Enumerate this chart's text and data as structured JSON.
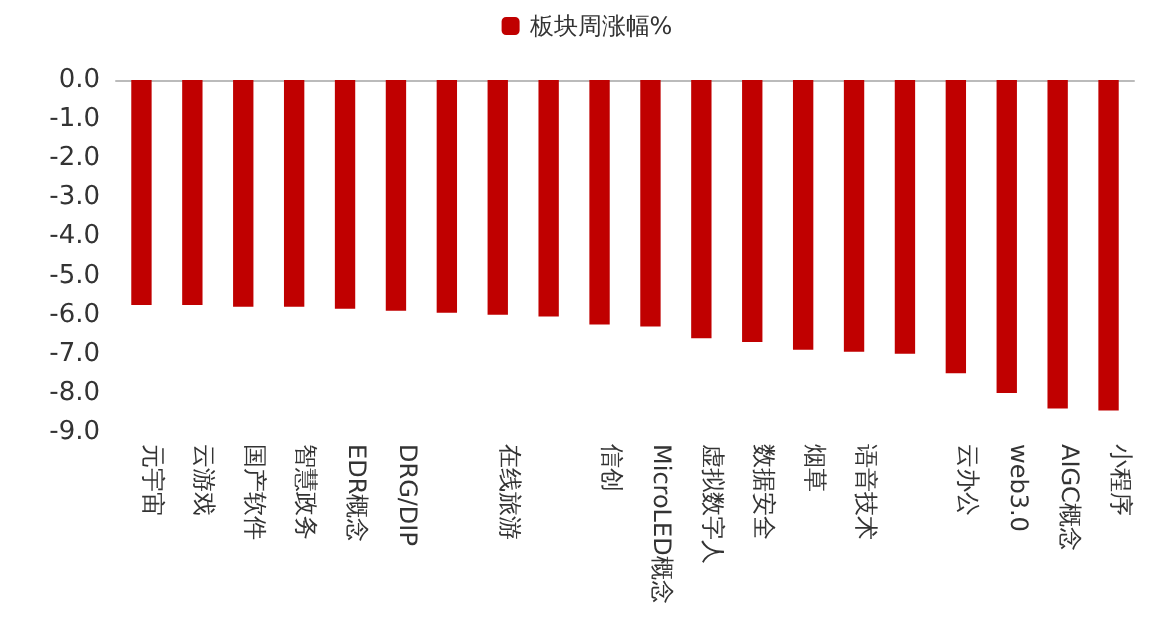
{
  "chart_data": {
    "type": "bar",
    "categories": [
      "元宇宙",
      "云游戏",
      "国产软件",
      "智慧政务",
      "EDR概念",
      "DRG/DIP",
      null,
      "在线旅游",
      null,
      "信创",
      "MicroLED概念",
      "虚拟数字人",
      "数据安全",
      "烟草",
      "语音技术",
      null,
      "云办公",
      "web3.0",
      "AIGC概念",
      "小程序"
    ],
    "series": [
      {
        "name": "板块周涨幅%",
        "color": "#c00000",
        "values": [
          -5.75,
          -5.75,
          -5.8,
          -5.8,
          -5.85,
          -5.9,
          -5.95,
          -6.0,
          -6.05,
          -6.25,
          -6.3,
          -6.6,
          -6.7,
          -6.9,
          -6.95,
          -7.0,
          -7.5,
          -8.0,
          -8.4,
          -8.45
        ]
      }
    ],
    "ylim": [
      -9,
      0
    ],
    "yticks": [
      {
        "value": 0,
        "label": "0.0"
      },
      {
        "value": -1,
        "label": "-1.0"
      },
      {
        "value": -2,
        "label": "-2.0"
      },
      {
        "value": -3,
        "label": "-3.0"
      },
      {
        "value": -4,
        "label": "-4.0"
      },
      {
        "value": -5,
        "label": "-5.0"
      },
      {
        "value": -6,
        "label": "-6.0"
      },
      {
        "value": -7,
        "label": "-7.0"
      },
      {
        "value": -8,
        "label": "-8.0"
      },
      {
        "value": -9,
        "label": "-9.0"
      }
    ],
    "grid": false,
    "legend": "top"
  }
}
